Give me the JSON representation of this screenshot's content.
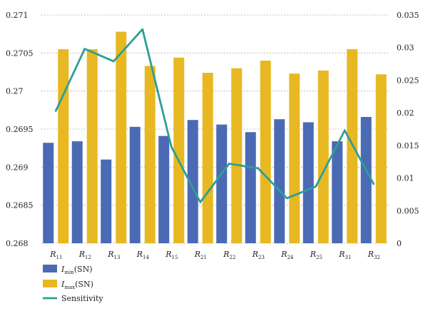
{
  "chart_data": {
    "type": "bar",
    "categories": [
      {
        "main": "R",
        "sub": "11"
      },
      {
        "main": "R",
        "sub": "12"
      },
      {
        "main": "R",
        "sub": "13"
      },
      {
        "main": "R",
        "sub": "14"
      },
      {
        "main": "R",
        "sub": "15"
      },
      {
        "main": "R",
        "sub": "21"
      },
      {
        "main": "R",
        "sub": "22"
      },
      {
        "main": "R",
        "sub": "23"
      },
      {
        "main": "R",
        "sub": "24"
      },
      {
        "main": "R",
        "sub": "25"
      },
      {
        "main": "R",
        "sub": "31"
      },
      {
        "main": "R",
        "sub": "32"
      }
    ],
    "series": [
      {
        "name": "Imin(SN)",
        "legend_main": "I",
        "legend_sub": "min",
        "legend_tail": "(SN)",
        "axis": "left",
        "kind": "bar",
        "color": "#4a6ab4",
        "values": [
          0.26932,
          0.26934,
          0.2691,
          0.26953,
          0.26941,
          0.26962,
          0.26956,
          0.26946,
          0.26963,
          0.26959,
          0.26934,
          0.26966
        ]
      },
      {
        "name": "Imax(SN)",
        "legend_main": "I",
        "legend_sub": "max",
        "legend_tail": "(SN)",
        "axis": "left",
        "kind": "bar",
        "color": "#e8b823",
        "values": [
          0.27055,
          0.27055,
          0.27078,
          0.27033,
          0.27044,
          0.27024,
          0.2703,
          0.2704,
          0.27023,
          0.27027,
          0.27055,
          0.27022
        ]
      },
      {
        "name": "Sensitivity",
        "legend_main": "Sensitivity",
        "legend_sub": "",
        "legend_tail": "",
        "axis": "right",
        "kind": "line",
        "color": "#2e9e96",
        "values": [
          0.0203,
          0.0298,
          0.0279,
          0.0328,
          0.0148,
          0.0063,
          0.0122,
          0.0115,
          0.0069,
          0.0087,
          0.0173,
          0.0091
        ]
      }
    ],
    "left_axis": {
      "min": 0.268,
      "max": 0.271,
      "ticks": [
        "0.268",
        "0.2685",
        "0.269",
        "0.2695",
        "0.27",
        "0.2705",
        "0.271"
      ]
    },
    "right_axis": {
      "min": 0,
      "max": 0.035,
      "ticks": [
        "0",
        "0.005",
        "0.01",
        "0.015",
        "0.02",
        "0.025",
        "0.03",
        "0.035"
      ]
    },
    "grid": true,
    "legend_position": "bottom-left"
  }
}
